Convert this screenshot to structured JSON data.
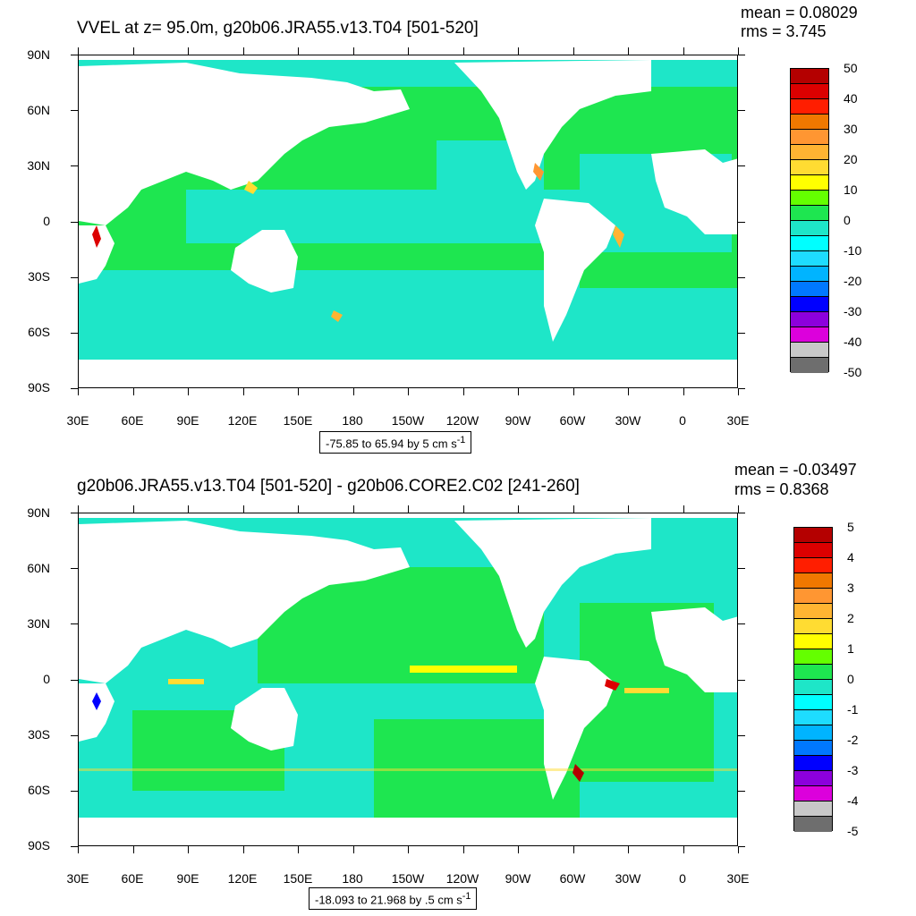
{
  "top": {
    "title": "VVEL at z=  95.0m, g20b06.JRA55.v13.T04 [501-520]",
    "mean": "mean = 0.08029",
    "rms": "rms = 3.745",
    "range_prefix": "-75.85 to 65.94 by 5 cm s",
    "range_sup": "-1",
    "colorbar_labels": [
      "50",
      "40",
      "30",
      "20",
      "10",
      "0",
      "-10",
      "-20",
      "-30",
      "-40",
      "-50"
    ]
  },
  "bottom": {
    "title": "g20b06.JRA55.v13.T04 [501-520] - g20b06.CORE2.C02 [241-260]",
    "mean": "mean = -0.03497",
    "rms": "rms = 0.8368",
    "range_prefix": "-18.093 to 21.968 by .5 cm s",
    "range_sup": "-1",
    "colorbar_labels": [
      "5",
      "4",
      "3",
      "2",
      "1",
      "0",
      "-1",
      "-2",
      "-3",
      "-4",
      "-5"
    ]
  },
  "lat_labels": [
    "90N",
    "60N",
    "30N",
    "0",
    "30S",
    "60S",
    "90S"
  ],
  "lon_labels": [
    "30E",
    "60E",
    "90E",
    "120E",
    "150E",
    "180",
    "150W",
    "120W",
    "90W",
    "60W",
    "30W",
    "0",
    "30E"
  ],
  "colors": {
    "palette": [
      "#b40000",
      "#dc0000",
      "#ff1e00",
      "#f07800",
      "#ff9632",
      "#ffb432",
      "#ffdc32",
      "#ffff00",
      "#64ff00",
      "#1ee650",
      "#1ee6c8",
      "#00ffff",
      "#1edcff",
      "#00b4ff",
      "#0078ff",
      "#0000ff",
      "#8c00dc",
      "#dc00dc",
      "#c8c8c8",
      "#6e6e6e"
    ],
    "ocean_main": "#1ee650",
    "ocean_cyan": "#1ee6c8",
    "land": "#ffffff"
  }
}
